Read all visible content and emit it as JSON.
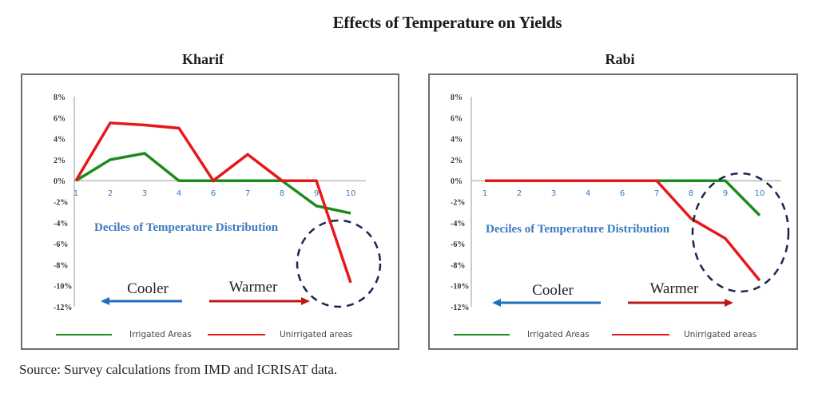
{
  "title": "Effects of Temperature on Yields",
  "source": "Source: Survey calculations from IMD and ICRISAT data.",
  "colors": {
    "irrigated": "#1e8a1e",
    "unirrigated": "#e8181a",
    "axis_label": "#3b7bbf",
    "cooler_arrow": "#1f6fbf",
    "warmer_arrow": "#c01818",
    "circle": "#1a2550"
  },
  "annotations": {
    "xlabel": "Deciles of Temperature Distribution",
    "cooler": "Cooler",
    "warmer": "Warmer"
  },
  "chart_data": [
    {
      "type": "line",
      "title": "Kharif",
      "xlabel": "Deciles of Temperature Distribution",
      "ylabel": "",
      "categories": [
        "1",
        "2",
        "3",
        "4",
        "6",
        "7",
        "8",
        "9",
        "10"
      ],
      "yticks": [
        "8%",
        "6%",
        "4%",
        "2%",
        "0%",
        "-2%",
        "-4%",
        "-6%",
        "-8%",
        "-10%",
        "-12%"
      ],
      "ylim": [
        -12,
        8
      ],
      "grid": false,
      "legend": "bottom",
      "series": [
        {
          "name": "Irrigated Areas",
          "values": [
            0,
            2.0,
            2.6,
            0,
            0,
            0,
            0,
            -2.4,
            -3.1
          ]
        },
        {
          "name": "Unirrigated areas",
          "values": [
            0,
            5.5,
            5.3,
            5.0,
            0,
            2.5,
            0,
            0,
            -9.7
          ]
        }
      ]
    },
    {
      "type": "line",
      "title": "Rabi",
      "xlabel": "Deciles of Temperature Distribution",
      "ylabel": "",
      "categories": [
        "1",
        "2",
        "3",
        "4",
        "6",
        "7",
        "8",
        "9",
        "10"
      ],
      "yticks": [
        "8%",
        "6%",
        "4%",
        "2%",
        "0%",
        "-2%",
        "-4%",
        "-6%",
        "-8%",
        "-10%",
        "-12%"
      ],
      "ylim": [
        -12,
        8
      ],
      "grid": false,
      "legend": "bottom",
      "series": [
        {
          "name": "Irrigated Areas",
          "values": [
            0,
            0,
            0,
            0,
            0,
            0,
            0,
            0,
            -3.3
          ]
        },
        {
          "name": "Unirrigated areas",
          "values": [
            0,
            0,
            0,
            0,
            0,
            0,
            -3.6,
            -5.5,
            -9.5
          ]
        }
      ]
    }
  ]
}
